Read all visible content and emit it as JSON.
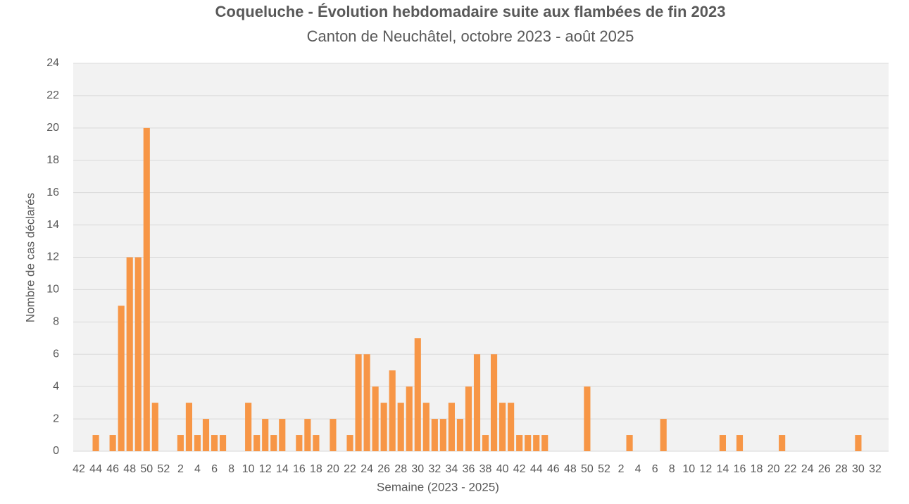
{
  "chart_data": {
    "type": "bar",
    "title": "Coqueluche - Évolution hebdomadaire suite aux flambées de fin 2023",
    "subtitle": "Canton de Neuchâtel, octobre 2023 - août 2025",
    "x_label": "Semaine (2023 - 2025)",
    "y_label": "Nombre de cas déclarés",
    "categories": [
      "42",
      null,
      "44",
      null,
      "46",
      null,
      "48",
      null,
      "50",
      null,
      "52",
      null,
      "2",
      null,
      "4",
      null,
      "6",
      null,
      "8",
      null,
      "10",
      null,
      "12",
      null,
      "14",
      null,
      "16",
      null,
      "18",
      null,
      "20",
      null,
      "22",
      null,
      "24",
      null,
      "26",
      null,
      "28",
      null,
      "30",
      null,
      "32",
      null,
      "34",
      null,
      "36",
      null,
      "38",
      null,
      "40",
      null,
      "42",
      null,
      "44",
      null,
      "46",
      null,
      "48",
      null,
      "50",
      null,
      "52",
      null,
      "2",
      null,
      "4",
      null,
      "6",
      null,
      "8",
      null,
      "10",
      null,
      "12",
      null,
      "14",
      null,
      "16",
      null,
      "18",
      null,
      "20",
      null,
      "22",
      null,
      "24",
      null,
      "26",
      null,
      "28",
      null,
      "30",
      null,
      "32"
    ],
    "values": [
      0,
      0,
      1,
      0,
      1,
      9,
      12,
      12,
      20,
      3,
      0,
      0,
      1,
      3,
      1,
      2,
      1,
      1,
      0,
      0,
      3,
      1,
      2,
      1,
      2,
      0,
      1,
      2,
      1,
      0,
      2,
      0,
      1,
      6,
      6,
      4,
      3,
      5,
      3,
      4,
      7,
      3,
      2,
      2,
      3,
      2,
      4,
      6,
      1,
      6,
      3,
      3,
      1,
      1,
      1,
      1,
      0,
      0,
      0,
      0,
      4,
      0,
      0,
      0,
      0,
      1,
      0,
      0,
      0,
      2,
      0,
      0,
      0,
      0,
      0,
      0,
      1,
      0,
      1,
      0,
      0,
      0,
      0,
      1,
      0,
      0,
      0,
      0,
      0,
      0,
      0,
      0,
      1,
      0,
      0
    ],
    "color": "#f79646",
    "ylim": [
      0,
      24
    ],
    "yticks": [
      0,
      2,
      4,
      6,
      8,
      10,
      12,
      14,
      16,
      18,
      20,
      22,
      24
    ],
    "grid": true
  }
}
